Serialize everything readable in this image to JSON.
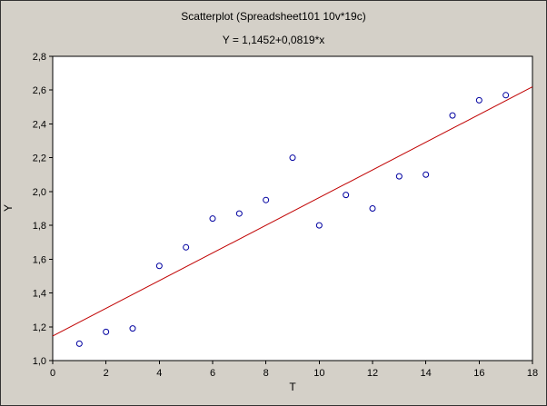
{
  "window": {
    "background": "#d4d0c8"
  },
  "chart_data": {
    "type": "scatter",
    "title": "Scatterplot (Spreadsheet101 10v*19c)",
    "subtitle": "Y = 1,1452+0,0819*x",
    "xlabel": "T",
    "ylabel": "Y",
    "xlim": [
      0,
      18
    ],
    "ylim": [
      1.0,
      2.8
    ],
    "grid": false,
    "legend": "none",
    "x_ticks": {
      "values": [
        0,
        2,
        4,
        6,
        8,
        10,
        12,
        14,
        16,
        18
      ],
      "labels": [
        "0",
        "2",
        "4",
        "6",
        "8",
        "10",
        "12",
        "14",
        "16",
        "18"
      ]
    },
    "y_ticks": {
      "values": [
        1.0,
        1.2,
        1.4,
        1.6,
        1.8,
        2.0,
        2.2,
        2.4,
        2.6,
        2.8
      ],
      "labels": [
        "1,0",
        "1,2",
        "1,4",
        "1,6",
        "1,8",
        "2,0",
        "2,2",
        "2,4",
        "2,6",
        "2,8"
      ]
    },
    "points": {
      "x": [
        1,
        2,
        3,
        4,
        5,
        6,
        7,
        8,
        9,
        10,
        11,
        12,
        13,
        14,
        15,
        16,
        17
      ],
      "y": [
        1.1,
        1.17,
        1.19,
        1.56,
        1.67,
        1.84,
        1.87,
        1.95,
        2.2,
        1.8,
        1.98,
        1.9,
        2.09,
        2.1,
        2.45,
        2.54,
        2.57
      ]
    },
    "regression_line": {
      "equation": "Y = 1,1452+0,0819*x",
      "intercept": 1.1452,
      "slope": 0.0819,
      "x_from": 0,
      "x_to": 18
    },
    "colors": {
      "point": "#0000a0",
      "line": "#c00000",
      "plot_background": "#ffffff",
      "axis": "#000000"
    }
  }
}
